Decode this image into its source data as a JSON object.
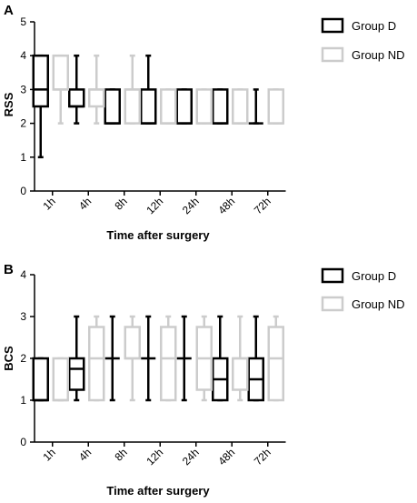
{
  "chart_data": [
    {
      "type": "boxplot",
      "panel": "A",
      "ylabel": "RSS",
      "xlabel": "Time after surgery",
      "ylim": [
        0,
        5
      ],
      "yticks": [
        "0",
        "1",
        "2",
        "3",
        "4",
        "5"
      ],
      "categories": [
        "1h",
        "4h",
        "8h",
        "12h",
        "24h",
        "48h",
        "72h"
      ],
      "legend_position": "top-right",
      "series": [
        {
          "name": "Group D",
          "color": "#000000",
          "boxes": [
            {
              "min": 1,
              "q1": 2.5,
              "median": 3,
              "q3": 4,
              "max": 4
            },
            {
              "min": 2,
              "q1": 2.5,
              "median": 2.5,
              "q3": 3,
              "max": 4
            },
            {
              "min": 2,
              "q1": 2,
              "median": 2,
              "q3": 3,
              "max": 3
            },
            {
              "min": 2,
              "q1": 2,
              "median": 2,
              "q3": 3,
              "max": 4
            },
            {
              "min": 2,
              "q1": 2,
              "median": 2,
              "q3": 3,
              "max": 3
            },
            {
              "min": 2,
              "q1": 2,
              "median": 2,
              "q3": 3,
              "max": 3
            },
            {
              "min": 2,
              "q1": 2,
              "median": 2,
              "q3": 2,
              "max": 3
            }
          ]
        },
        {
          "name": "Group ND",
          "color": "#cccccc",
          "boxes": [
            {
              "min": 2,
              "q1": 3,
              "median": 3,
              "q3": 4,
              "max": 4
            },
            {
              "min": 2,
              "q1": 2.5,
              "median": 3,
              "q3": 3,
              "max": 4
            },
            {
              "min": 2,
              "q1": 2,
              "median": 3,
              "q3": 3,
              "max": 4
            },
            {
              "min": 2,
              "q1": 2,
              "median": 2,
              "q3": 3,
              "max": 3
            },
            {
              "min": 2,
              "q1": 2,
              "median": 2,
              "q3": 3,
              "max": 3
            },
            {
              "min": 2,
              "q1": 2,
              "median": 2,
              "q3": 3,
              "max": 3
            },
            {
              "min": 2,
              "q1": 2,
              "median": 2,
              "q3": 3,
              "max": 3
            }
          ]
        }
      ]
    },
    {
      "type": "boxplot",
      "panel": "B",
      "ylabel": "BCS",
      "xlabel": "Time after surgery",
      "ylim": [
        0,
        4
      ],
      "yticks": [
        "0",
        "1",
        "2",
        "3",
        "4"
      ],
      "categories": [
        "1h",
        "4h",
        "8h",
        "12h",
        "24h",
        "48h",
        "72h"
      ],
      "legend_position": "top-right",
      "series": [
        {
          "name": "Group D",
          "color": "#000000",
          "boxes": [
            {
              "min": 1,
              "q1": 1,
              "median": 1,
              "q3": 2,
              "max": 2
            },
            {
              "min": 1,
              "q1": 1.25,
              "median": 1.75,
              "q3": 2,
              "max": 3
            },
            {
              "min": 1,
              "q1": 2,
              "median": 2,
              "q3": 2,
              "max": 3
            },
            {
              "min": 1,
              "q1": 2,
              "median": 2,
              "q3": 2,
              "max": 3
            },
            {
              "min": 1,
              "q1": 2,
              "median": 2,
              "q3": 2,
              "max": 3
            },
            {
              "min": 1,
              "q1": 1,
              "median": 1.5,
              "q3": 2,
              "max": 3
            },
            {
              "min": 1,
              "q1": 1,
              "median": 1.5,
              "q3": 2,
              "max": 3
            }
          ]
        },
        {
          "name": "Group ND",
          "color": "#cccccc",
          "boxes": [
            {
              "min": 1,
              "q1": 1,
              "median": 1,
              "q3": 2,
              "max": 2
            },
            {
              "min": 1,
              "q1": 1,
              "median": 2,
              "q3": 2.75,
              "max": 3
            },
            {
              "min": 1,
              "q1": 2,
              "median": 2,
              "q3": 2.75,
              "max": 3
            },
            {
              "min": 1,
              "q1": 1,
              "median": 2,
              "q3": 2.75,
              "max": 3
            },
            {
              "min": 1,
              "q1": 1.25,
              "median": 2,
              "q3": 2.75,
              "max": 3
            },
            {
              "min": 1,
              "q1": 1.25,
              "median": 2,
              "q3": 2,
              "max": 3
            },
            {
              "min": 1,
              "q1": 1,
              "median": 2,
              "q3": 2.75,
              "max": 3
            }
          ]
        }
      ]
    }
  ]
}
